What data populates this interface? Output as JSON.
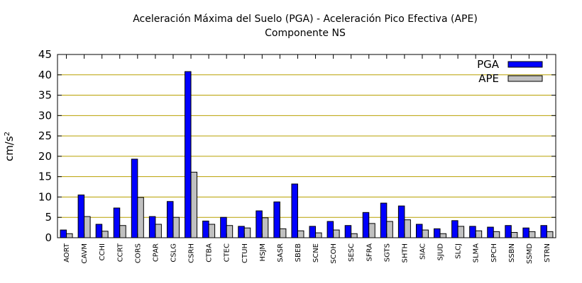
{
  "chart_data": {
    "type": "bar",
    "title": "Aceleración Máxima del Suelo (PGA) -  Aceleración Pico Efectiva (APE)",
    "subtitle": "Componente NS",
    "xlabel": "",
    "ylabel": "cm/s",
    "ylabel_sup": "2",
    "ylim": [
      0,
      45
    ],
    "yticks": [
      0,
      5,
      10,
      15,
      20,
      25,
      30,
      35,
      40,
      45
    ],
    "grid": true,
    "legend_position": "top-right",
    "categories": [
      "AORT",
      "CAVM",
      "CCHI",
      "CCRT",
      "CORS",
      "CPAR",
      "CSLG",
      "CSRH",
      "CTBA",
      "CTEC",
      "CTUH",
      "HSJM",
      "SASR",
      "SBEB",
      "SCNE",
      "SCOH",
      "SESC",
      "SFRA",
      "SGTS",
      "SHTH",
      "SIAC",
      "SJUD",
      "SLCJ",
      "SLMA",
      "SPCH",
      "SSBN",
      "SSMD",
      "STRN"
    ],
    "series": [
      {
        "name": "PGA",
        "color": "#0000ff",
        "values": [
          1.9,
          10.5,
          3.3,
          7.3,
          19.3,
          5.2,
          8.9,
          40.8,
          4.1,
          5.0,
          2.8,
          6.6,
          8.8,
          13.2,
          2.8,
          4.0,
          3.0,
          6.2,
          8.5,
          7.8,
          3.3,
          2.2,
          4.2,
          2.8,
          2.6,
          3.0,
          2.4,
          3.0
        ]
      },
      {
        "name": "APE",
        "color": "#c0c0c0",
        "values": [
          1.0,
          5.2,
          1.6,
          3.0,
          9.9,
          3.3,
          5.0,
          16.1,
          3.3,
          3.0,
          2.4,
          4.9,
          2.2,
          1.7,
          1.2,
          1.9,
          1.0,
          3.5,
          4.0,
          4.4,
          1.9,
          1.0,
          2.8,
          1.7,
          1.5,
          1.3,
          1.5,
          1.5
        ]
      }
    ],
    "grid_color": "#b8a000"
  }
}
